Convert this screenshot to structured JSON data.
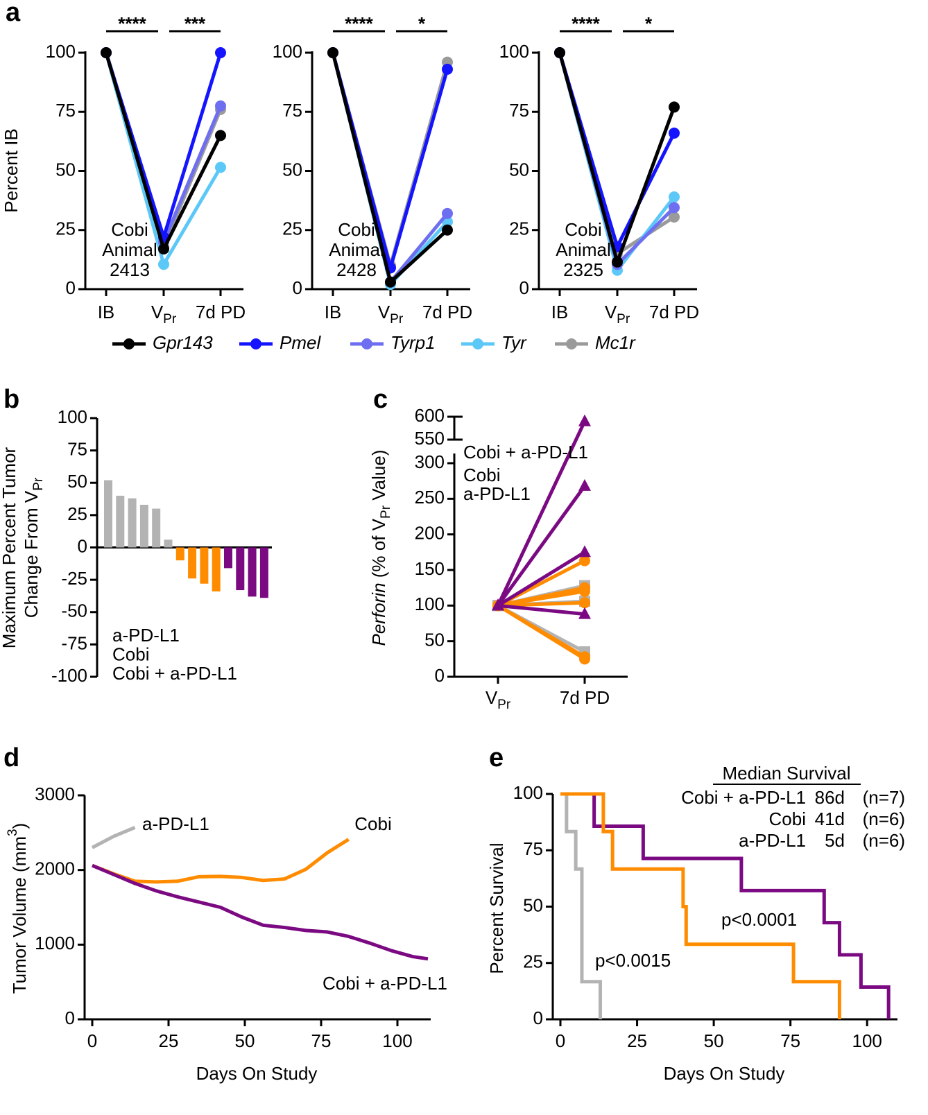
{
  "chart_data": [
    {
      "type": "paired-line",
      "panel": "a",
      "categories": [
        "IB",
        [
          "V",
          "Pr"
        ],
        "7d PD"
      ],
      "ylabel": "Percent IB",
      "ylim": [
        0,
        100
      ],
      "yticks": [
        0,
        25,
        50,
        75,
        100
      ],
      "annotation_color": "#ff8c00",
      "series": [
        {
          "name": "Gpr143",
          "color": "#000000"
        },
        {
          "name": "Pmel",
          "color": "#1414ff"
        },
        {
          "name": "Tyrp1",
          "color": "#6e6ef0"
        },
        {
          "name": "Tyr",
          "color": "#5cc8f8"
        },
        {
          "name": "Mc1r",
          "color": "#9a9a9a"
        }
      ],
      "panels": [
        {
          "annotation": [
            "Cobi",
            "Animal",
            "2413"
          ],
          "significance": [
            "****",
            "***"
          ],
          "values": [
            [
              100,
              17,
              65
            ],
            [
              100,
              22,
              100
            ],
            [
              100,
              20,
              77.5
            ],
            [
              100,
              10.5,
              51.5
            ],
            [
              100,
              18,
              76
            ]
          ]
        },
        {
          "annotation": [
            "Cobi",
            "Animal",
            "2428"
          ],
          "significance": [
            "****",
            "*"
          ],
          "values": [
            [
              100,
              3,
              25
            ],
            [
              100,
              9,
              93
            ],
            [
              100,
              3,
              32
            ],
            [
              100,
              2,
              28.5
            ],
            [
              100,
              10,
              96
            ]
          ]
        },
        {
          "annotation": [
            "Cobi",
            "Animal",
            "2325"
          ],
          "significance": [
            "****",
            "*"
          ],
          "values": [
            [
              100,
              11.5,
              77
            ],
            [
              100,
              18,
              66
            ],
            [
              100,
              10.5,
              34.5
            ],
            [
              100,
              8,
              39
            ],
            [
              100,
              15,
              30.5
            ]
          ]
        }
      ]
    },
    {
      "type": "bar",
      "panel": "b",
      "ylabel": [
        "Maximum Percent Tumor",
        [
          "Change From V",
          "Pr"
        ]
      ],
      "ylim": [
        -100,
        100
      ],
      "yticks": [
        100,
        75,
        50,
        25,
        0,
        -25,
        -50,
        -75,
        -100
      ],
      "series": [
        {
          "name": "a-PD-L1",
          "color": "#b3b3b3",
          "values": [
            52,
            40,
            38,
            33,
            30,
            6
          ]
        },
        {
          "name": "Cobi",
          "color": "#ff8c00",
          "values": [
            -10,
            -24,
            -28,
            -34
          ]
        },
        {
          "name": "Cobi + a-PD-L1",
          "color": "#7b0a82",
          "values": [
            -16,
            -33,
            -38,
            -39
          ]
        }
      ]
    },
    {
      "type": "paired-line",
      "panel": "c",
      "categories": [
        [
          "V",
          "Pr"
        ],
        "7d PD"
      ],
      "ylabel": [
        "Perforin",
        " (% of V",
        "Pr",
        " Value)"
      ],
      "ylim": [
        0,
        300
      ],
      "yticks": [
        0,
        50,
        100,
        150,
        200,
        250,
        300
      ],
      "ylim_upper": [
        550,
        600
      ],
      "yticks_upper": [
        550,
        600
      ],
      "series": [
        {
          "name": "Cobi + a-PD-L1",
          "color": "#7b0a82",
          "marker": "triangle",
          "values": [
            [
              100,
              590
            ],
            [
              100,
              268
            ],
            [
              100,
              175
            ],
            [
              100,
              88
            ]
          ]
        },
        {
          "name": "Cobi",
          "color": "#ff8c00",
          "marker": "circle",
          "values": [
            [
              100,
              163
            ],
            [
              100,
              125
            ],
            [
              100,
              120
            ],
            [
              100,
              104
            ],
            [
              100,
              28
            ],
            [
              100,
              25
            ]
          ]
        },
        {
          "name": "a-PD-L1",
          "color": "#b3b3b3",
          "marker": "square",
          "values": [
            [
              100,
              128
            ],
            [
              100,
              106
            ],
            [
              100,
              35
            ]
          ]
        }
      ]
    },
    {
      "type": "line",
      "panel": "d",
      "xlabel": "Days On Study",
      "ylabel": [
        "Tumor Volume (mm",
        "3",
        ")"
      ],
      "xlim": [
        0,
        110
      ],
      "xticks": [
        0,
        25,
        50,
        75,
        100
      ],
      "ylim": [
        0,
        3000
      ],
      "yticks": [
        0,
        1000,
        2000,
        3000
      ],
      "series": [
        {
          "name": "a-PD-L1",
          "color": "#b3b3b3",
          "x": [
            0,
            7,
            14
          ],
          "values": [
            2300,
            2450,
            2570
          ]
        },
        {
          "name": "Cobi",
          "color": "#ff8c00",
          "x": [
            0,
            7,
            14,
            21,
            28,
            35,
            42,
            49,
            56,
            63,
            70,
            77,
            84
          ],
          "values": [
            2060,
            1950,
            1850,
            1840,
            1850,
            1910,
            1915,
            1900,
            1860,
            1880,
            2010,
            2230,
            2410
          ]
        },
        {
          "name": "Cobi + a-PD-L1",
          "color": "#7b0a82",
          "x": [
            0,
            7,
            14,
            21,
            28,
            35,
            42,
            49,
            56,
            63,
            70,
            77,
            84,
            91,
            98,
            105,
            110
          ],
          "values": [
            2060,
            1940,
            1820,
            1720,
            1640,
            1570,
            1500,
            1370,
            1260,
            1230,
            1190,
            1170,
            1110,
            1020,
            920,
            840,
            810
          ]
        }
      ]
    },
    {
      "type": "step",
      "panel": "e",
      "xlabel": "Days On Study",
      "ylabel": "Percent Survival",
      "xlim": [
        0,
        109
      ],
      "xticks": [
        0,
        25,
        50,
        75,
        100
      ],
      "ylim": [
        0,
        100
      ],
      "yticks": [
        0,
        25,
        50,
        75,
        100
      ],
      "table_title": "Median Survival",
      "annotations": [
        "p<0.0001",
        "p<0.0015"
      ],
      "series": [
        {
          "name": "Cobi + a-PD-L1",
          "color": "#7b0a82",
          "median_label": "86d",
          "n_label": "(n=7)",
          "x": [
            0,
            11,
            27,
            59,
            86,
            91,
            98,
            107
          ],
          "values": [
            100,
            85.7,
            71.4,
            57.1,
            42.9,
            28.6,
            14.3,
            0
          ]
        },
        {
          "name": "Cobi",
          "color": "#ff8c00",
          "median_label": "41d",
          "n_label": "(n=6)",
          "x": [
            0,
            14,
            17,
            40,
            41,
            76,
            91
          ],
          "values": [
            100,
            83.3,
            66.7,
            50,
            33.3,
            16.7,
            0
          ]
        },
        {
          "name": "a-PD-L1",
          "color": "#b3b3b3",
          "median_label": "5d",
          "n_label": "(n=6)",
          "x": [
            0,
            2,
            5,
            7,
            13
          ],
          "values": [
            100,
            83.3,
            66.7,
            16.7,
            0
          ]
        }
      ]
    }
  ]
}
